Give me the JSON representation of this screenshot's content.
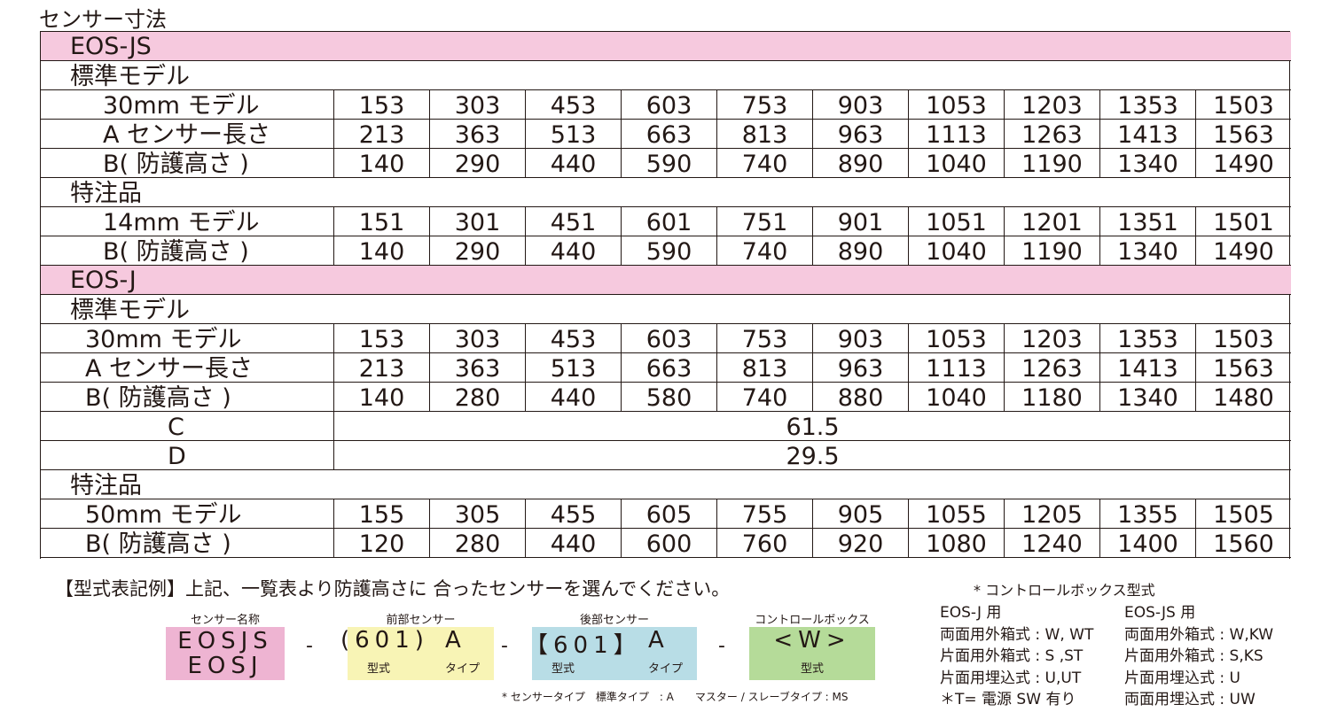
{
  "title": "センサー寸法",
  "table": {
    "sections": [
      {
        "name": "EOS-JS",
        "groups": [
          {
            "name": "標準モデル",
            "rows": [
              {
                "label": "30mm モデル",
                "values": [
                  153,
                  303,
                  453,
                  603,
                  753,
                  903,
                  1053,
                  1203,
                  1353,
                  1503
                ]
              },
              {
                "label": "A センサー長さ",
                "values": [
                  213,
                  363,
                  513,
                  663,
                  813,
                  963,
                  1113,
                  1263,
                  1413,
                  1563
                ]
              },
              {
                "label": "B( 防護高さ )",
                "values": [
                  140,
                  290,
                  440,
                  590,
                  740,
                  890,
                  1040,
                  1190,
                  1340,
                  1490
                ]
              }
            ]
          },
          {
            "name": "特注品",
            "rows": [
              {
                "label": "14mm モデル",
                "values": [
                  151,
                  301,
                  451,
                  601,
                  751,
                  901,
                  1051,
                  1201,
                  1351,
                  1501
                ]
              },
              {
                "label": "B( 防護高さ )",
                "values": [
                  140,
                  290,
                  440,
                  590,
                  740,
                  890,
                  1040,
                  1190,
                  1340,
                  1490
                ]
              }
            ]
          }
        ]
      },
      {
        "name": "EOS-J",
        "groups": [
          {
            "name": "標準モデル",
            "rows": [
              {
                "label": "30mm モデル",
                "values": [
                  153,
                  303,
                  453,
                  603,
                  753,
                  903,
                  1053,
                  1203,
                  1353,
                  1503
                ]
              },
              {
                "label": "A センサー長さ",
                "values": [
                  213,
                  363,
                  513,
                  663,
                  813,
                  963,
                  1113,
                  1263,
                  1413,
                  1563
                ]
              },
              {
                "label": "B( 防護高さ )",
                "values": [
                  140,
                  280,
                  440,
                  580,
                  740,
                  880,
                  1040,
                  1180,
                  1340,
                  1480
                ]
              },
              {
                "label": "C",
                "value": 61.5
              },
              {
                "label": "D",
                "value": 29.5
              }
            ]
          },
          {
            "name": "特注品",
            "rows": [
              {
                "label": "50mm モデル",
                "values": [
                  155,
                  305,
                  455,
                  605,
                  755,
                  905,
                  1055,
                  1205,
                  1355,
                  1505
                ]
              },
              {
                "label": "B( 防護高さ )",
                "values": [
                  120,
                  280,
                  440,
                  600,
                  760,
                  920,
                  1080,
                  1240,
                  1400,
                  1560
                ]
              }
            ]
          }
        ]
      }
    ]
  },
  "example": {
    "heading": "【型式表記例】上記、一覧表より防護高さに 合ったセンサーを選んでください。",
    "note": "* コントロールボックス型式",
    "separator": "-",
    "boxes": [
      {
        "label": "センサー名称",
        "lines": [
          "EOSJS",
          "EOSJ"
        ]
      },
      {
        "label": "前部センサー",
        "code": "(601)",
        "type": "A",
        "sub": [
          "型式",
          "タイプ"
        ]
      },
      {
        "label": "後部センサー",
        "code": "【601】",
        "type": "A",
        "sub": [
          "型式",
          "タイプ"
        ]
      },
      {
        "label": "コントロールボックス",
        "code": "<W>",
        "sub": [
          "型式"
        ]
      }
    ],
    "footnote": "* センサータイプ　標準タイプ　: A　　マスター / スレーブタイプ : MS"
  },
  "options": [
    {
      "title": "EOS-J 用",
      "lines": [
        "両面用外箱式 : W, WT",
        "片面用外箱式 : S ,ST",
        "片面用埋込式 : U,UT",
        "＊T= 電源 SW 有り"
      ]
    },
    {
      "title": "EOS-JS 用",
      "lines": [
        "両面用外箱式 : W,KW",
        "片面用外箱式 : S,KS",
        "片面用埋込式 : U",
        "両面用埋込式 : UW"
      ]
    }
  ]
}
